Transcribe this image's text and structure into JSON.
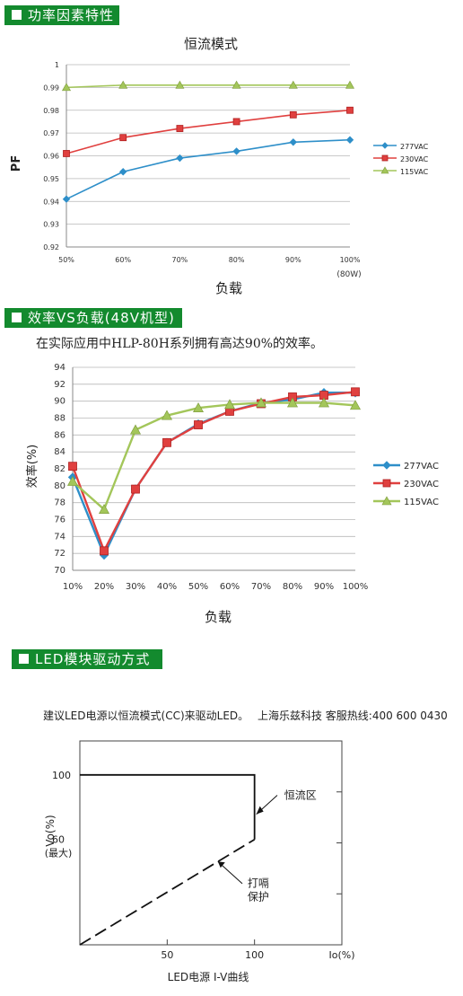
{
  "sections": {
    "pf": "功率因素特性",
    "eff": "效率VS负载(48V机型)",
    "led": "LED模块驱动方式"
  },
  "eff_note": "在实际应用中HLP-80H系列拥有高达90%的效率。",
  "led_note_left": "建议LED电源以恒流模式(CC)来驱动LED。",
  "led_note_right": "上海乐兹科技 客服热线:400 600 0430",
  "colors": {
    "header_green": "#138a2e",
    "blue": "#2e8fc9",
    "red": "#e0403f",
    "green": "#a3c65a"
  },
  "chart_data": [
    {
      "type": "line",
      "title": "恒流模式",
      "xlabel": "负载",
      "ylabel": "PF",
      "categories": [
        "50%",
        "60%",
        "70%",
        "80%",
        "90%",
        "100%"
      ],
      "x_extra_label": "(80W)",
      "ylim": [
        0.92,
        1.0
      ],
      "yticks": [
        "0.92",
        "0.93",
        "0.94",
        "0.95",
        "0.96",
        "0.97",
        "0.98",
        "0.99",
        "1"
      ],
      "grid": true,
      "legend": "right",
      "series": [
        {
          "name": "277VAC",
          "marker": "diamond",
          "values": [
            0.941,
            0.953,
            0.959,
            0.962,
            0.966,
            0.967
          ]
        },
        {
          "name": "230VAC",
          "marker": "square",
          "values": [
            0.961,
            0.968,
            0.972,
            0.975,
            0.978,
            0.98
          ]
        },
        {
          "name": "115VAC",
          "marker": "triangle",
          "values": [
            0.99,
            0.991,
            0.991,
            0.991,
            0.991,
            0.991
          ]
        }
      ]
    },
    {
      "type": "line",
      "title": "",
      "xlabel": "负载",
      "ylabel": "效率(%)",
      "categories": [
        "10%",
        "20%",
        "30%",
        "40%",
        "50%",
        "60%",
        "70%",
        "80%",
        "90%",
        "100%"
      ],
      "ylim": [
        70,
        94
      ],
      "yticks": [
        "70",
        "72",
        "74",
        "76",
        "78",
        "80",
        "82",
        "84",
        "86",
        "88",
        "90",
        "92",
        "94"
      ],
      "grid": true,
      "legend": "right",
      "series": [
        {
          "name": "277VAC",
          "marker": "diamond",
          "values": [
            81.0,
            71.8,
            79.6,
            85.1,
            87.3,
            88.8,
            89.8,
            90.2,
            91.0,
            91.0
          ]
        },
        {
          "name": "230VAC",
          "marker": "square",
          "values": [
            82.3,
            72.3,
            79.6,
            85.1,
            87.2,
            88.8,
            89.7,
            90.5,
            90.7,
            91.1
          ]
        },
        {
          "name": "115VAC",
          "marker": "triangle",
          "values": [
            80.5,
            77.2,
            86.6,
            88.3,
            89.2,
            89.6,
            89.8,
            89.8,
            89.8,
            89.5
          ]
        }
      ]
    },
    {
      "type": "line",
      "title": "LED电源 I-V曲线",
      "xlabel": "Io(%)",
      "ylabel": "Vo(%)",
      "xticks": [
        "50",
        "100"
      ],
      "yticks": [
        "100",
        "60"
      ],
      "ytick_sub": "(最大)",
      "xlim": [
        0,
        150
      ],
      "ylim": [
        0,
        120
      ],
      "annotations": [
        "恒流区",
        "打嗝",
        "保护"
      ],
      "series": [
        {
          "style": "solid",
          "points": [
            [
              0,
              100
            ],
            [
              100,
              100
            ],
            [
              100,
              62
            ]
          ]
        },
        {
          "style": "dashed",
          "points": [
            [
              0,
              0
            ],
            [
              100,
              62
            ]
          ]
        }
      ]
    }
  ]
}
